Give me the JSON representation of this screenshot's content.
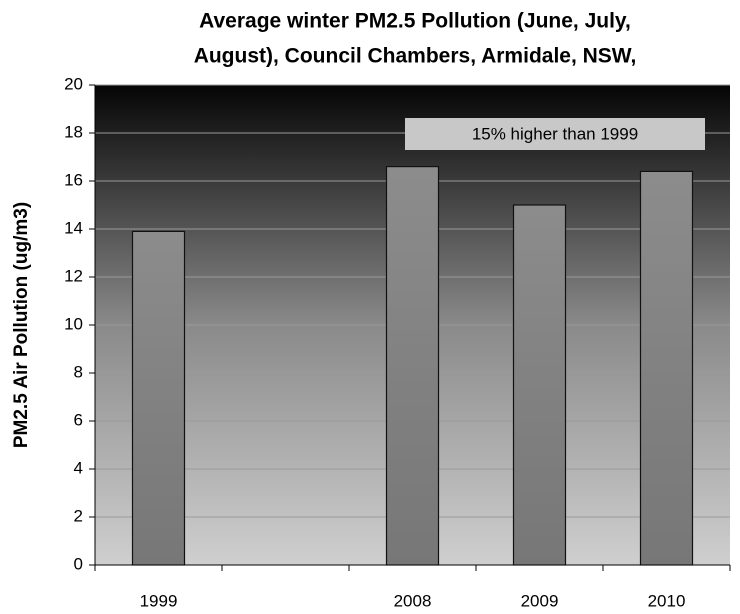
{
  "chart_data": {
    "type": "bar",
    "title": [
      "Average winter PM2.5 Pollution (June, July,",
      "August), Council Chambers, Armidale, NSW,"
    ],
    "y_label": "PM2.5 Air Pollution (ug/m3)",
    "annotation": "15% higher than 1999",
    "categories": [
      "1999",
      null,
      "2008",
      "2009",
      "2010"
    ],
    "values": [
      13.9,
      null,
      16.6,
      15.0,
      16.4
    ],
    "color": "#888888",
    "ylim": [
      0,
      20
    ],
    "yticks": [
      0,
      2,
      4,
      6,
      8,
      10,
      12,
      14,
      16,
      18,
      20
    ],
    "grid": true
  }
}
